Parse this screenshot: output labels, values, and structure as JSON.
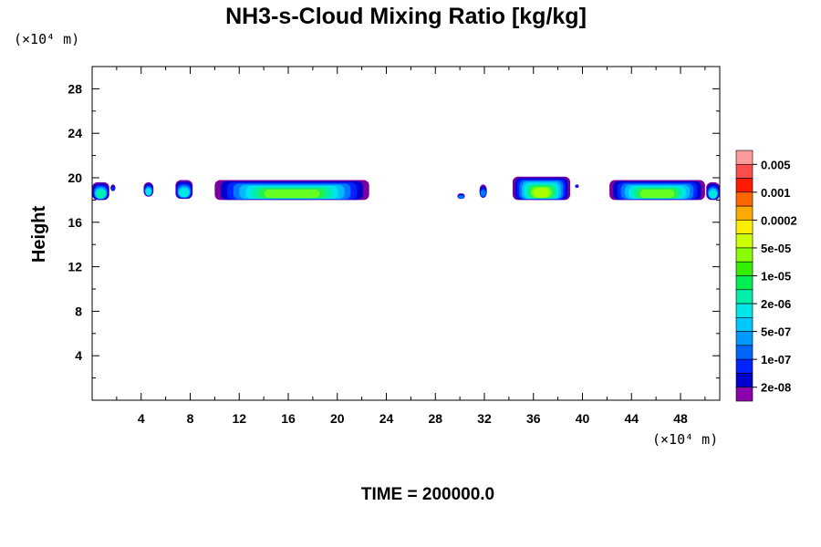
{
  "chart_data": {
    "type": "heatmap",
    "title": "NH3-s-Cloud Mixing Ratio [kg/kg]",
    "ylabel": "Height",
    "y_unit": "(×10⁴ m)",
    "x_unit": "(×10⁴ m)",
    "footer": "TIME = 200000.0",
    "xlim": [
      0,
      51.2
    ],
    "ylim": [
      0,
      30
    ],
    "x_ticks": [
      "4",
      "8",
      "12",
      "16",
      "20",
      "24",
      "28",
      "32",
      "36",
      "40",
      "44",
      "48"
    ],
    "x_tick_values": [
      4,
      8,
      12,
      16,
      20,
      24,
      28,
      32,
      36,
      40,
      44,
      48
    ],
    "y_ticks": [
      "4",
      "8",
      "12",
      "16",
      "20",
      "24",
      "28"
    ],
    "y_tick_values": [
      4,
      8,
      12,
      16,
      20,
      24,
      28
    ],
    "colorbar": {
      "labels": [
        "0.005",
        "0.001",
        "0.0002",
        "5e-05",
        "1e-05",
        "2e-06",
        "5e-07",
        "1e-07",
        "2e-08"
      ],
      "colors_top_to_bottom": [
        "#ff9a9a",
        "#ff4d4d",
        "#ff1a00",
        "#ff6600",
        "#ffaa00",
        "#ffee00",
        "#ccff00",
        "#88ff00",
        "#33ee00",
        "#00ee55",
        "#00eeaa",
        "#00e5e5",
        "#00c8ff",
        "#0099ff",
        "#0066ff",
        "#0022ff",
        "#0000cc",
        "#8a00aa"
      ]
    },
    "cloud_patches": [
      {
        "x": [
          0,
          1.4
        ],
        "y": [
          18.0,
          19.6
        ],
        "peak": "1e-06"
      },
      {
        "x": [
          1.5,
          1.9
        ],
        "y": [
          18.8,
          19.4
        ],
        "peak": "2e-08"
      },
      {
        "x": [
          4.2,
          5.0
        ],
        "y": [
          18.3,
          19.6
        ],
        "peak": "5e-07"
      },
      {
        "x": [
          6.8,
          8.2
        ],
        "y": [
          18.1,
          19.8
        ],
        "peak": "5e-07"
      },
      {
        "x": [
          10.0,
          22.6
        ],
        "y": [
          18.0,
          19.8
        ],
        "peak": "2e-05"
      },
      {
        "x": [
          29.8,
          30.4
        ],
        "y": [
          18.1,
          18.6
        ],
        "peak": "1e-07"
      },
      {
        "x": [
          31.6,
          32.2
        ],
        "y": [
          18.2,
          19.4
        ],
        "peak": "1e-07"
      },
      {
        "x": [
          34.3,
          39.0
        ],
        "y": [
          18.0,
          20.1
        ],
        "peak": "5e-05"
      },
      {
        "x": [
          39.4,
          39.7
        ],
        "y": [
          19.1,
          19.4
        ],
        "peak": "2e-08"
      },
      {
        "x": [
          42.2,
          50.0
        ],
        "y": [
          18.0,
          19.8
        ],
        "peak": "2e-05"
      },
      {
        "x": [
          50.1,
          51.2
        ],
        "y": [
          18.0,
          19.6
        ],
        "peak": "5e-07"
      }
    ]
  }
}
